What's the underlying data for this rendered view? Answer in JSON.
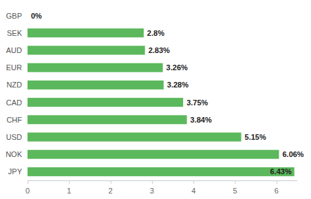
{
  "chart_data": {
    "type": "bar",
    "orientation": "horizontal",
    "categories": [
      "GBP",
      "SEK",
      "AUD",
      "EUR",
      "NZD",
      "CAD",
      "CHF",
      "USD",
      "NOK",
      "JPY"
    ],
    "values": [
      0,
      2.8,
      2.83,
      3.26,
      3.28,
      3.75,
      3.84,
      5.15,
      6.06,
      6.43
    ],
    "value_labels": [
      "0%",
      "2.8%",
      "2.83%",
      "3.26%",
      "3.28%",
      "3.75%",
      "3.84%",
      "5.15%",
      "6.06%",
      "6.43%"
    ],
    "color": "#5cb85c",
    "xlim": [
      0,
      6.5
    ],
    "xticks": [
      0,
      1,
      2,
      3,
      4,
      5,
      6
    ],
    "grid": false,
    "data_labels": true
  }
}
